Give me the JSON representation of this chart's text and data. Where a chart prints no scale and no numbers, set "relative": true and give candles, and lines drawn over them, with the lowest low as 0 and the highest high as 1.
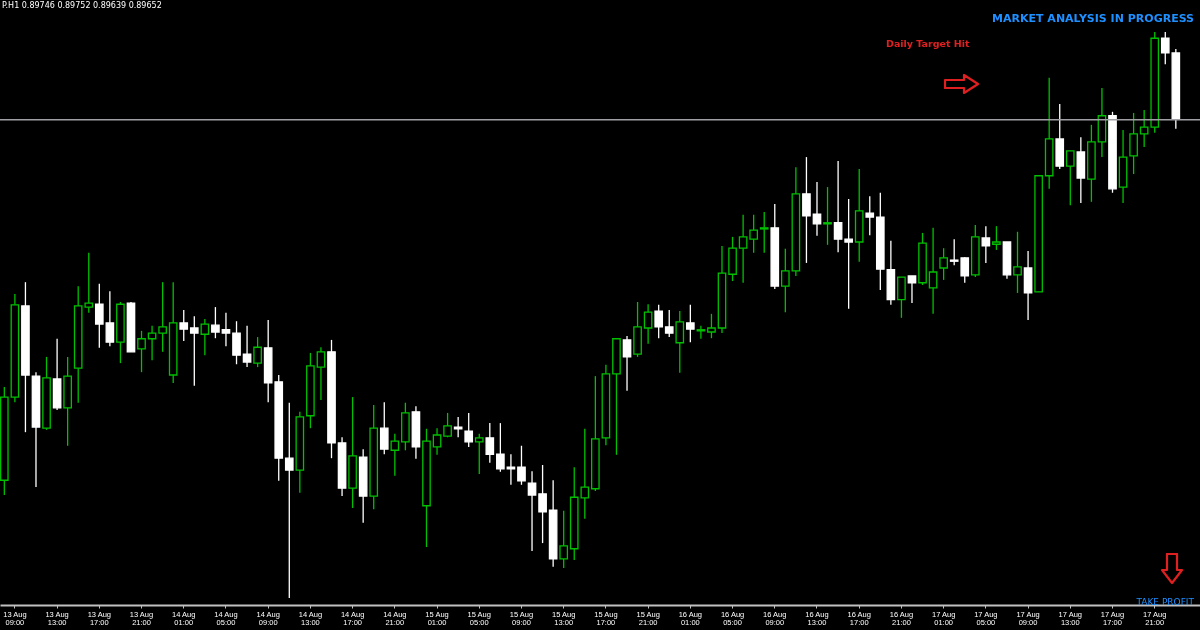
{
  "chart_data": {
    "type": "candlestick",
    "relative": true,
    "categories": [
      null,
      "13 Aug 09:00",
      null,
      null,
      null,
      "13 Aug 13:00",
      null,
      null,
      null,
      "13 Aug 17:00",
      null,
      null,
      null,
      "13 Aug 21:00",
      null,
      null,
      null,
      "14 Aug 01:00",
      null,
      null,
      null,
      "14 Aug 05:00",
      null,
      null,
      null,
      "14 Aug 09:00",
      null,
      null,
      null,
      "14 Aug 13:00",
      null,
      null,
      null,
      "14 Aug 17:00",
      null,
      null,
      null,
      "14 Aug 21:00",
      null,
      null,
      null,
      "15 Aug 01:00",
      null,
      null,
      null,
      "15 Aug 05:00",
      null,
      null,
      null,
      "15 Aug 09:00",
      null,
      null,
      null,
      "15 Aug 13:00",
      null,
      null,
      null,
      "15 Aug 17:00",
      null,
      null,
      null,
      "15 Aug 21:00",
      null,
      null,
      null,
      "16 Aug 01:00",
      null,
      null,
      null,
      "16 Aug 05:00",
      null,
      null,
      null,
      "16 Aug 09:00",
      null,
      null,
      null,
      "16 Aug 13:00",
      null,
      null,
      null,
      "16 Aug 17:00",
      null,
      null,
      null,
      "16 Aug 21:00",
      null,
      null,
      null,
      "17 Aug 01:00",
      null,
      null,
      null,
      "17 Aug 05:00",
      null,
      null,
      null,
      "17 Aug 09:00",
      null,
      null,
      null,
      "17 Aug 13:00",
      null,
      null,
      null,
      "17 Aug 17:00",
      null,
      null,
      null,
      "17 Aug 21:00",
      null,
      null
    ],
    "ohlc": [
      [
        0.208,
        0.373,
        0.182,
        0.355
      ],
      [
        0.355,
        0.537,
        0.346,
        0.518
      ],
      [
        0.516,
        0.558,
        0.293,
        0.394
      ],
      [
        0.392,
        0.399,
        0.196,
        0.302
      ],
      [
        0.3,
        0.426,
        0.297,
        0.389
      ],
      [
        0.387,
        0.458,
        0.332,
        0.336
      ],
      [
        0.336,
        0.426,
        0.269,
        0.392
      ],
      [
        0.406,
        0.551,
        0.345,
        0.516
      ],
      [
        0.514,
        0.61,
        0.504,
        0.521
      ],
      [
        0.519,
        0.555,
        0.442,
        0.484
      ],
      [
        0.486,
        0.542,
        0.445,
        0.452
      ],
      [
        0.452,
        0.523,
        0.415,
        0.519
      ],
      [
        0.521,
        0.523,
        0.435,
        0.435
      ],
      [
        0.44,
        0.472,
        0.399,
        0.458
      ],
      [
        0.458,
        0.481,
        0.42,
        0.468
      ],
      [
        0.468,
        0.558,
        0.435,
        0.479
      ],
      [
        0.394,
        0.558,
        0.38,
        0.486
      ],
      [
        0.486,
        0.509,
        0.454,
        0.475
      ],
      [
        0.477,
        0.498,
        0.375,
        0.468
      ],
      [
        0.466,
        0.493,
        0.429,
        0.484
      ],
      [
        0.482,
        0.514,
        0.459,
        0.47
      ],
      [
        0.474,
        0.504,
        0.445,
        0.468
      ],
      [
        0.468,
        0.489,
        0.413,
        0.429
      ],
      [
        0.431,
        0.481,
        0.408,
        0.417
      ],
      [
        0.415,
        0.461,
        0.408,
        0.443
      ],
      [
        0.442,
        0.491,
        0.346,
        0.38
      ],
      [
        0.382,
        0.394,
        0.207,
        0.247
      ],
      [
        0.247,
        0.345,
        0,
        0.226
      ],
      [
        0.226,
        0.329,
        0.186,
        0.32
      ],
      [
        0.322,
        0.433,
        0.3,
        0.41
      ],
      [
        0.408,
        0.443,
        0.35,
        0.435
      ],
      [
        0.435,
        0.456,
        0.247,
        0.274
      ],
      [
        0.274,
        0.284,
        0.18,
        0.194
      ],
      [
        0.194,
        0.355,
        0.159,
        0.251
      ],
      [
        0.249,
        0.263,
        0.133,
        0.18
      ],
      [
        0.18,
        0.341,
        0.157,
        0.3
      ],
      [
        0.3,
        0.346,
        0.254,
        0.263
      ],
      [
        0.261,
        0.29,
        0.216,
        0.277
      ],
      [
        0.276,
        0.345,
        0.261,
        0.327
      ],
      [
        0.329,
        0.339,
        0.246,
        0.267
      ],
      [
        0.163,
        0.299,
        0.09,
        0.277
      ],
      [
        0.267,
        0.3,
        0.253,
        0.288
      ],
      [
        0.286,
        0.327,
        0.284,
        0.304
      ],
      [
        0.302,
        0.32,
        0.284,
        0.299
      ],
      [
        0.295,
        0.327,
        0.267,
        0.276
      ],
      [
        0.276,
        0.29,
        0.219,
        0.283
      ],
      [
        0.283,
        0.309,
        0.239,
        0.254
      ],
      [
        0.254,
        0.309,
        0.223,
        0.228
      ],
      [
        0.231,
        0.254,
        0.2,
        0.228
      ],
      [
        0.231,
        0.269,
        0.2,
        0.207
      ],
      [
        0.203,
        0.224,
        0.083,
        0.182
      ],
      [
        0.184,
        0.235,
        0.097,
        0.152
      ],
      [
        0.155,
        0.208,
        0.055,
        0.069
      ],
      [
        0.069,
        0.154,
        0.053,
        0.092
      ],
      [
        0.087,
        0.231,
        0.067,
        0.178
      ],
      [
        0.177,
        0.299,
        0.14,
        0.196
      ],
      [
        0.193,
        0.392,
        0.189,
        0.281
      ],
      [
        0.283,
        0.412,
        0.27,
        0.396
      ],
      [
        0.396,
        0.458,
        0.253,
        0.458
      ],
      [
        0.456,
        0.463,
        0.366,
        0.426
      ],
      [
        0.431,
        0.523,
        0.426,
        0.479
      ],
      [
        0.477,
        0.519,
        0.449,
        0.505
      ],
      [
        0.507,
        0.518,
        0.459,
        0.479
      ],
      [
        0.479,
        0.509,
        0.461,
        0.468
      ],
      [
        0.451,
        0.507,
        0.398,
        0.488
      ],
      [
        0.486,
        0.518,
        0.452,
        0.475
      ],
      [
        0.472,
        0.481,
        0.458,
        0.474
      ],
      [
        0.47,
        0.502,
        0.459,
        0.477
      ],
      [
        0.477,
        0.622,
        0.468,
        0.574
      ],
      [
        0.572,
        0.638,
        0.56,
        0.618
      ],
      [
        0.618,
        0.677,
        0.557,
        0.638
      ],
      [
        0.634,
        0.677,
        0.61,
        0.65
      ],
      [
        0.652,
        0.682,
        0.61,
        0.654
      ],
      [
        0.654,
        0.696,
        0.546,
        0.551
      ],
      [
        0.551,
        0.617,
        0.505,
        0.578
      ],
      [
        0.578,
        0.761,
        0.569,
        0.714
      ],
      [
        0.714,
        0.779,
        0.592,
        0.675
      ],
      [
        0.678,
        0.735,
        0.64,
        0.661
      ],
      [
        0.661,
        0.726,
        0.624,
        0.663
      ],
      [
        0.663,
        0.772,
        0.611,
        0.634
      ],
      [
        0.634,
        0.705,
        0.511,
        0.629
      ],
      [
        0.629,
        0.758,
        0.594,
        0.684
      ],
      [
        0.68,
        0.71,
        0.641,
        0.673
      ],
      [
        0.673,
        0.716,
        0.544,
        0.581
      ],
      [
        0.58,
        0.631,
        0.518,
        0.527
      ],
      [
        0.527,
        0.567,
        0.495,
        0.567
      ],
      [
        0.569,
        0.569,
        0.521,
        0.557
      ],
      [
        0.557,
        0.645,
        0.553,
        0.627
      ],
      [
        0.548,
        0.654,
        0.502,
        0.576
      ],
      [
        0.583,
        0.618,
        0.562,
        0.601
      ],
      [
        0.597,
        0.634,
        0.588,
        0.595
      ],
      [
        0.601,
        0.602,
        0.557,
        0.569
      ],
      [
        0.571,
        0.659,
        0.567,
        0.638
      ],
      [
        0.636,
        0.657,
        0.592,
        0.622
      ],
      [
        0.625,
        0.657,
        0.615,
        0.629
      ],
      [
        0.629,
        0.629,
        0.564,
        0.571
      ],
      [
        0.571,
        0.647,
        0.539,
        0.585
      ],
      [
        0.583,
        0.613,
        0.491,
        0.539
      ],
      [
        0.541,
        0.746,
        0.541,
        0.746
      ],
      [
        0.746,
        0.919,
        0.723,
        0.811
      ],
      [
        0.811,
        0.873,
        0.758,
        0.763
      ],
      [
        0.763,
        0.79,
        0.694,
        0.79
      ],
      [
        0.788,
        0.814,
        0.698,
        0.742
      ],
      [
        0.74,
        0.836,
        0.7,
        0.806
      ],
      [
        0.806,
        0.901,
        0.779,
        0.852
      ],
      [
        0.852,
        0.859,
        0.716,
        0.723
      ],
      [
        0.726,
        0.827,
        0.698,
        0.779
      ],
      [
        0.781,
        0.857,
        0.749,
        0.82
      ],
      [
        0.82,
        0.862,
        0.797,
        0.832
      ],
      [
        0.832,
        1,
        0.822,
        0.989
      ],
      [
        0.989,
        1,
        0.943,
        0.963
      ],
      [
        0.963,
        0.97,
        0.829,
        0.846
      ]
    ],
    "colors": [
      "#00c000",
      "#00c000",
      "#ffffff",
      "#ffffff",
      "#00c000",
      "#ffffff",
      "#00c000",
      "#00c000",
      "#00c000",
      "#ffffff",
      "#ffffff",
      "#00c000",
      "#ffffff",
      "#00c000",
      "#00c000",
      "#00c000",
      "#00c000",
      "#ffffff",
      "#ffffff",
      "#00c000",
      "#ffffff",
      "#ffffff",
      "#ffffff",
      "#ffffff",
      "#00c000",
      "#ffffff",
      "#ffffff",
      "#ffffff",
      "#00c000",
      "#00c000",
      "#00c000",
      "#ffffff",
      "#ffffff",
      "#00c000",
      "#ffffff",
      "#00c000",
      "#ffffff",
      "#00c000",
      "#00c000",
      "#ffffff",
      "#00c000",
      "#00c000",
      "#00c000",
      "#ffffff",
      "#ffffff",
      "#00c000",
      "#ffffff",
      "#ffffff",
      "#ffffff",
      "#ffffff",
      "#ffffff",
      "#ffffff",
      "#ffffff",
      "#00c000",
      "#00c000",
      "#00c000",
      "#00c000",
      "#00c000",
      "#00c000",
      "#ffffff",
      "#00c000",
      "#00c000",
      "#ffffff",
      "#ffffff",
      "#00c000",
      "#ffffff",
      "#00c000",
      "#00c000",
      "#00c000",
      "#00c000",
      "#00c000",
      "#00c000",
      "#00c000",
      "#ffffff",
      "#00c000",
      "#00c000",
      "#ffffff",
      "#ffffff",
      "#00c000",
      "#ffffff",
      "#ffffff",
      "#00c000",
      "#ffffff",
      "#ffffff",
      "#ffffff",
      "#00c000",
      "#ffffff",
      "#00c000",
      "#00c000",
      "#00c000",
      "#ffffff",
      "#ffffff",
      "#00c000",
      "#ffffff",
      "#00c000",
      "#ffffff",
      "#00c000",
      "#ffffff",
      "#00c000",
      "#00c000",
      "#ffffff",
      "#00c000",
      "#ffffff",
      "#00c000",
      "#00c000",
      "#ffffff",
      "#00c000",
      "#00c000",
      "#00c000",
      "#00c000",
      "#ffffff",
      "#ffffff"
    ],
    "ref_lines": [
      {
        "axis": "y",
        "value": 0.845,
        "color": "#a0a0a4"
      }
    ],
    "annotations": [
      "P.H1 0.89746 0.89752 0.89639 0.89652",
      "MARKET ANALYSIS IN PROGRESS",
      "Daily Target Hit",
      "TAKE PROFIT"
    ]
  }
}
